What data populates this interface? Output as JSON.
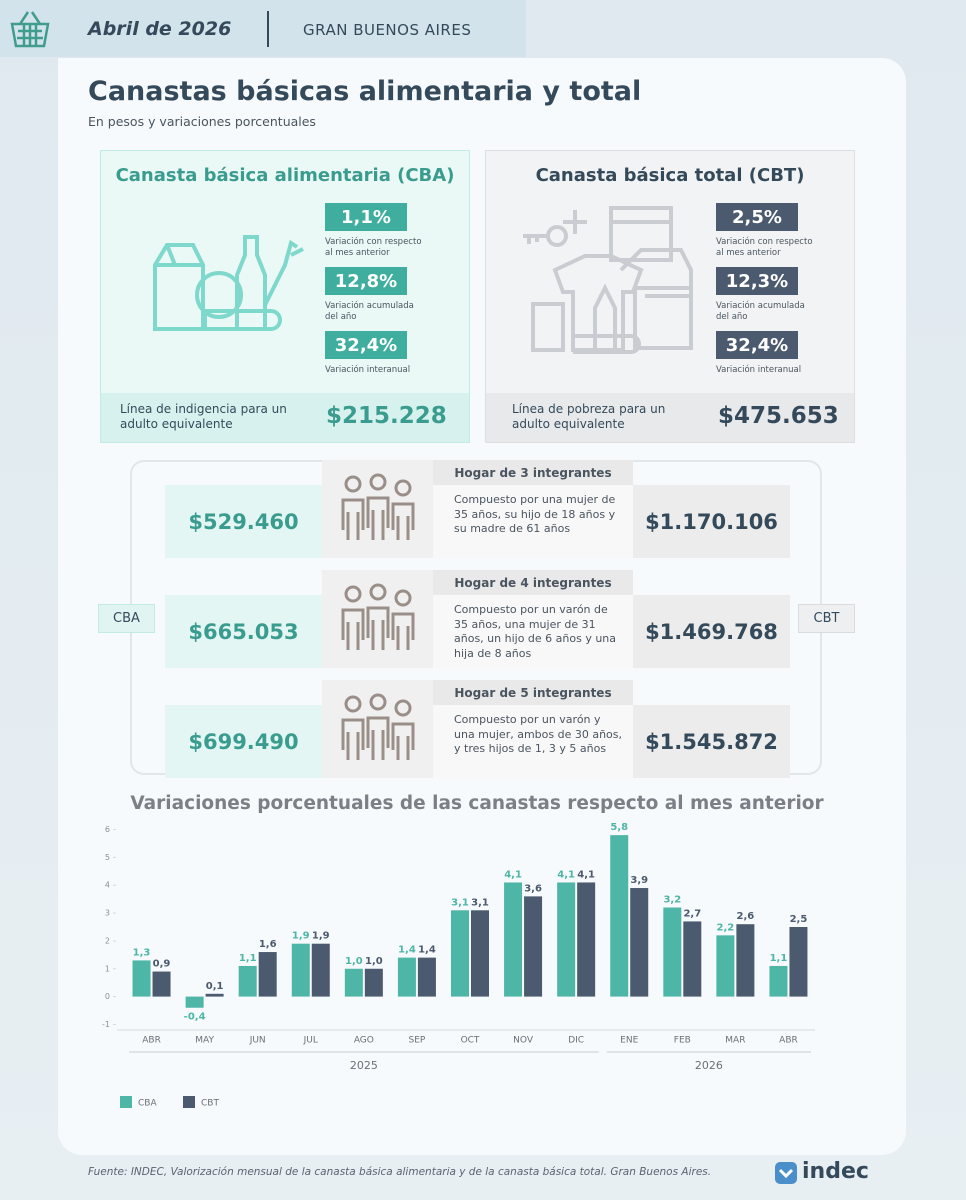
{
  "header": {
    "date": "Abril de 2026",
    "region": "GRAN BUENOS AIRES"
  },
  "title": "Canastas básicas alimentaria y total",
  "subtitle": "En pesos y variaciones porcentuales",
  "cba": {
    "title": "Canasta básica alimentaria (CBA)",
    "stats": [
      {
        "value": "1,1%",
        "label": "Variación con respecto al mes anterior"
      },
      {
        "value": "12,8%",
        "label": "Variación acumulada del año"
      },
      {
        "value": "32,4%",
        "label": "Variación interanual"
      }
    ],
    "line_label": "Línea de indigencia para un adulto equivalente",
    "amount": "$215.228"
  },
  "cbt": {
    "title": "Canasta básica total (CBT)",
    "stats": [
      {
        "value": "2,5%",
        "label": "Variación con respecto al mes anterior"
      },
      {
        "value": "12,3%",
        "label": "Variación acumulada del año"
      },
      {
        "value": "32,4%",
        "label": "Variación interanual"
      }
    ],
    "line_label": "Línea de pobreza para un adulto equivalente",
    "amount": "$475.653"
  },
  "households": {
    "cba_label": "CBA",
    "cbt_label": "CBT",
    "items": [
      {
        "title": "Hogar de 3 integrantes",
        "description": "Compuesto por una mujer de 35 años, su hijo de 18 años y su madre de 61 años",
        "cba": "$529.460",
        "cbt": "$1.170.106"
      },
      {
        "title": "Hogar de 4 integrantes",
        "description": "Compuesto por un varón de 35 años, una mujer de 31 años, un hijo de 6 años y una hija de 8 años",
        "cba": "$665.053",
        "cbt": "$1.469.768"
      },
      {
        "title": "Hogar de 5 integrantes",
        "description": "Compuesto por un varón y una mujer, ambos de 30 años, y tres hijos de 1, 3 y 5 años",
        "cba": "$699.490",
        "cbt": "$1.545.872"
      }
    ]
  },
  "chart_data": {
    "type": "bar",
    "title": "Variaciones porcentuales de las canastas respecto al mes anterior",
    "categories": [
      "ABR",
      "MAY",
      "JUN",
      "JUL",
      "AGO",
      "SEP",
      "OCT",
      "NOV",
      "DIC",
      "ENE",
      "FEB",
      "MAR",
      "ABR"
    ],
    "year_groups": [
      {
        "label": "2025",
        "span": 9
      },
      {
        "label": "2026",
        "span": 4
      }
    ],
    "series": [
      {
        "name": "CBA",
        "color": "#4db6a6",
        "values": [
          1.3,
          -0.4,
          1.1,
          1.9,
          1.0,
          1.4,
          3.1,
          4.1,
          4.1,
          5.8,
          3.2,
          2.2,
          1.1
        ],
        "value_labels": [
          "1,3",
          "-0,4",
          "1,1",
          "1,9",
          "1,0",
          "1,4",
          "3,1",
          "4,1",
          "4,1",
          "5,8",
          "3,2",
          "2,2",
          "1,1"
        ]
      },
      {
        "name": "CBT",
        "color": "#4b5a6e",
        "values": [
          0.9,
          0.1,
          1.6,
          1.9,
          1.0,
          1.4,
          3.1,
          3.6,
          4.1,
          3.9,
          2.7,
          2.6,
          2.5
        ],
        "value_labels": [
          "0,9",
          "0,1",
          "1,6",
          "1,9",
          "1,0",
          "1,4",
          "3,1",
          "3,6",
          "4,1",
          "3,9",
          "2,7",
          "2,6",
          "2,5"
        ]
      }
    ],
    "ylim": [
      -1.2,
      6.2
    ],
    "yticks": [
      6,
      5,
      4,
      3,
      2,
      1,
      0,
      -1
    ],
    "legend": "bottom-left"
  },
  "footer": {
    "source": "Fuente: INDEC, Valorización mensual de la canasta básica alimentaria y de la canasta básica total. Gran Buenos Aires.",
    "logo": "indec"
  }
}
